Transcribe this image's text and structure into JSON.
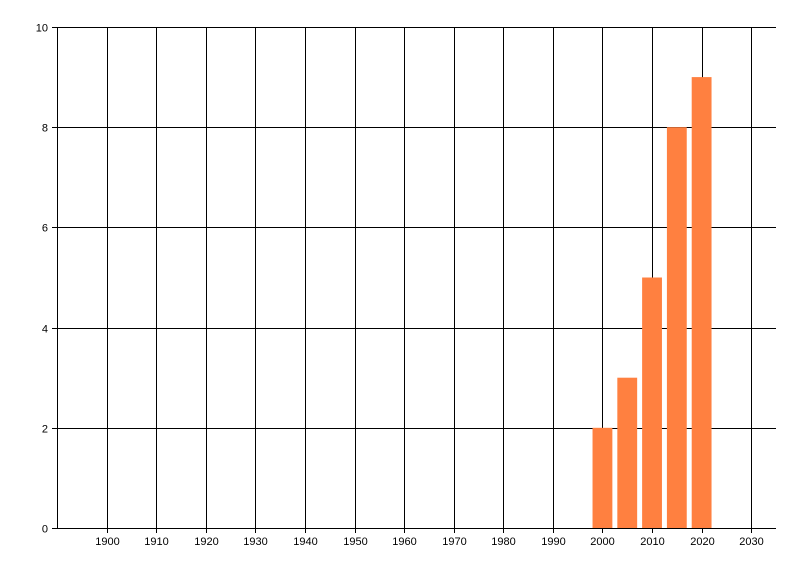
{
  "chart_data": {
    "type": "bar",
    "title": "",
    "xlabel": "",
    "ylabel": "",
    "x": [
      2000,
      2005,
      2010,
      2015,
      2020
    ],
    "values": [
      2,
      3,
      5,
      8,
      9
    ],
    "bar_width_years": 4,
    "xlim": [
      1890,
      2035
    ],
    "ylim": [
      0,
      10
    ],
    "xticks": [
      1900,
      1910,
      1920,
      1930,
      1940,
      1950,
      1960,
      1970,
      1980,
      1990,
      2000,
      2010,
      2020,
      2030
    ],
    "yticks": [
      0,
      2,
      4,
      6,
      8,
      10
    ],
    "grid": true,
    "legend": "none",
    "bar_color": "#FF8040",
    "grid_color": "#000000"
  }
}
